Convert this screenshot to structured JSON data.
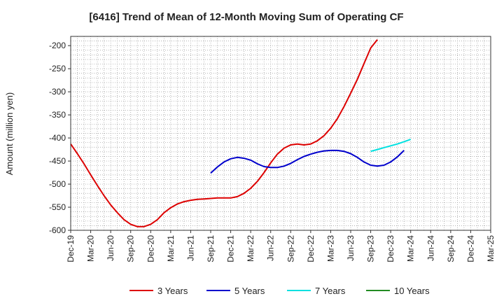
{
  "chart_data": {
    "type": "line",
    "title": "[6416]  Trend of Mean of 12-Month Moving Sum of Operating CF",
    "xlabel": "",
    "ylabel": "Amount (million yen)",
    "ylim": [
      -600,
      -180
    ],
    "yticks": [
      -200,
      -250,
      -300,
      -350,
      -400,
      -450,
      -500,
      -550,
      -600
    ],
    "x_categories": [
      "Dec-19",
      "Mar-20",
      "Jun-20",
      "Sep-20",
      "Dec-20",
      "Mar-21",
      "Jun-21",
      "Sep-21",
      "Dec-21",
      "Mar-22",
      "Jun-22",
      "Sep-22",
      "Dec-22",
      "Mar-23",
      "Jun-23",
      "Sep-23",
      "Dec-23",
      "Mar-24",
      "Jun-24",
      "Sep-24",
      "Dec-24",
      "Mar-25"
    ],
    "grid": true,
    "legend_position": "bottom",
    "series": [
      {
        "name": "3 Years",
        "color": "#dd0000",
        "start_index": 0,
        "values": [
          -413,
          -434,
          -456,
          -480,
          -503,
          -525,
          -545,
          -562,
          -577,
          -587,
          -592,
          -592,
          -587,
          -577,
          -562,
          -551,
          -543,
          -538,
          -535,
          -533,
          -532,
          -531,
          -530,
          -530,
          -530,
          -527,
          -520,
          -509,
          -494,
          -475,
          -454,
          -435,
          -422,
          -415,
          -413,
          -415,
          -413,
          -406,
          -395,
          -379,
          -358,
          -332,
          -303,
          -273,
          -239,
          -205,
          -187
        ]
      },
      {
        "name": "5 Years",
        "color": "#0000cc",
        "start_index": 21,
        "values": [
          -476,
          -463,
          -452,
          -445,
          -442,
          -444,
          -448,
          -456,
          -462,
          -464,
          -464,
          -461,
          -455,
          -447,
          -440,
          -435,
          -431,
          -428,
          -427,
          -427,
          -429,
          -434,
          -442,
          -452,
          -459,
          -461,
          -459,
          -452,
          -441,
          -427
        ]
      },
      {
        "name": "7 Years",
        "color": "#00e0e0",
        "start_index": 45,
        "values": [
          -429,
          -425,
          -421,
          -417,
          -413,
          -408,
          -403
        ]
      },
      {
        "name": "10 Years",
        "color": "#228b22",
        "start_index": 0,
        "values": []
      }
    ]
  }
}
